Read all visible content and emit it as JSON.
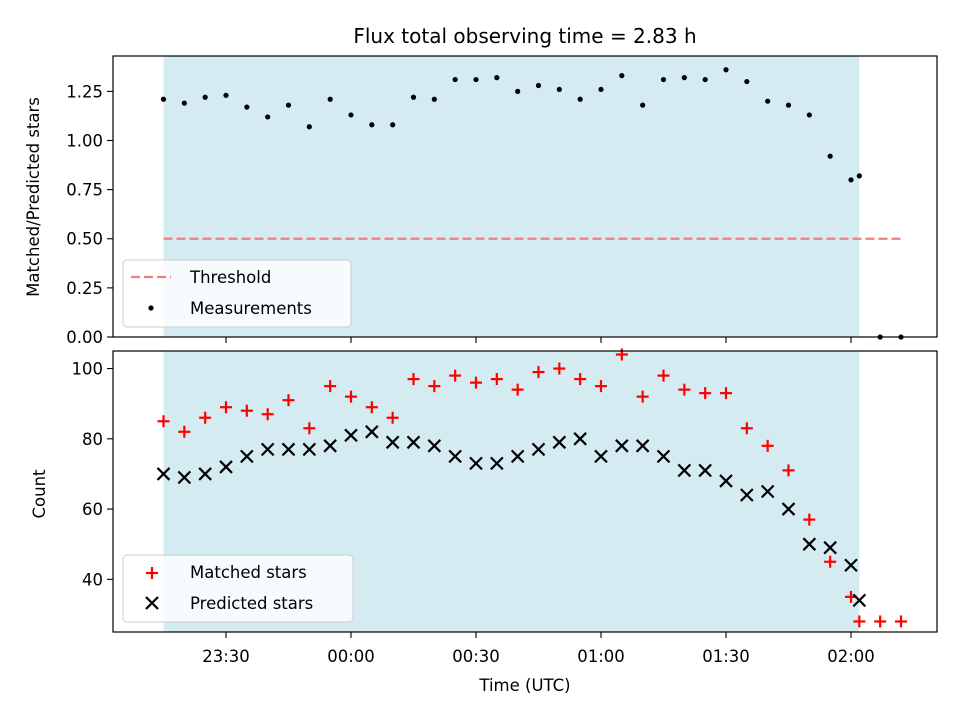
{
  "chart_data": [
    {
      "type": "scatter",
      "title": "Flux total observing time = 2.83 h",
      "ylabel": "Matched/Predicted stars",
      "xlabel": "",
      "ylim": [
        0,
        1.43
      ],
      "yticks": [
        "0.00",
        "0.25",
        "0.50",
        "0.75",
        "1.00",
        "1.25"
      ],
      "shaded_span": {
        "start": "23:15",
        "end": "02:02",
        "color": "#add8e6"
      },
      "threshold": {
        "name": "Threshold",
        "value": 0.5,
        "x_start": "23:15",
        "x_end": "02:12",
        "color": "#f08080"
      },
      "series": [
        {
          "name": "Measurements",
          "marker": "dot",
          "color": "#000000",
          "points": [
            [
              "23:15",
              1.21
            ],
            [
              "23:20",
              1.19
            ],
            [
              "23:25",
              1.22
            ],
            [
              "23:30",
              1.23
            ],
            [
              "23:35",
              1.17
            ],
            [
              "23:40",
              1.12
            ],
            [
              "23:45",
              1.18
            ],
            [
              "23:50",
              1.07
            ],
            [
              "23:55",
              1.21
            ],
            [
              "00:00",
              1.13
            ],
            [
              "00:05",
              1.08
            ],
            [
              "00:10",
              1.08
            ],
            [
              "00:15",
              1.22
            ],
            [
              "00:20",
              1.21
            ],
            [
              "00:25",
              1.31
            ],
            [
              "00:30",
              1.31
            ],
            [
              "00:35",
              1.32
            ],
            [
              "00:40",
              1.25
            ],
            [
              "00:45",
              1.28
            ],
            [
              "00:50",
              1.26
            ],
            [
              "00:55",
              1.21
            ],
            [
              "01:00",
              1.26
            ],
            [
              "01:05",
              1.33
            ],
            [
              "01:10",
              1.18
            ],
            [
              "01:15",
              1.31
            ],
            [
              "01:20",
              1.32
            ],
            [
              "01:25",
              1.31
            ],
            [
              "01:30",
              1.36
            ],
            [
              "01:35",
              1.3
            ],
            [
              "01:40",
              1.2
            ],
            [
              "01:45",
              1.18
            ],
            [
              "01:50",
              1.13
            ],
            [
              "01:55",
              0.92
            ],
            [
              "02:00",
              0.8
            ],
            [
              "02:02",
              0.82
            ],
            [
              "02:07",
              0.0
            ],
            [
              "02:12",
              0.0
            ]
          ]
        }
      ],
      "legend": {
        "placement": "lower-left",
        "entries": [
          "Threshold",
          "Measurements"
        ]
      }
    },
    {
      "type": "scatter",
      "title": "",
      "ylabel": "Count",
      "xlabel": "Time (UTC)",
      "ylim": [
        25,
        105
      ],
      "yticks": [
        "40",
        "60",
        "80",
        "100"
      ],
      "xticks": [
        "23:30",
        "00:00",
        "00:30",
        "01:00",
        "01:30",
        "02:00"
      ],
      "shaded_span": {
        "start": "23:15",
        "end": "02:02",
        "color": "#add8e6"
      },
      "series": [
        {
          "name": "Matched stars",
          "marker": "plus",
          "color": "#ff0000",
          "points": [
            [
              "23:15",
              85
            ],
            [
              "23:20",
              82
            ],
            [
              "23:25",
              86
            ],
            [
              "23:30",
              89
            ],
            [
              "23:35",
              88
            ],
            [
              "23:40",
              87
            ],
            [
              "23:45",
              91
            ],
            [
              "23:50",
              83
            ],
            [
              "23:55",
              95
            ],
            [
              "00:00",
              92
            ],
            [
              "00:05",
              89
            ],
            [
              "00:10",
              86
            ],
            [
              "00:15",
              97
            ],
            [
              "00:20",
              95
            ],
            [
              "00:25",
              98
            ],
            [
              "00:30",
              96
            ],
            [
              "00:35",
              97
            ],
            [
              "00:40",
              94
            ],
            [
              "00:45",
              99
            ],
            [
              "00:50",
              100
            ],
            [
              "00:55",
              97
            ],
            [
              "01:00",
              95
            ],
            [
              "01:05",
              104
            ],
            [
              "01:10",
              92
            ],
            [
              "01:15",
              98
            ],
            [
              "01:20",
              94
            ],
            [
              "01:25",
              93
            ],
            [
              "01:30",
              93
            ],
            [
              "01:35",
              83
            ],
            [
              "01:40",
              78
            ],
            [
              "01:45",
              71
            ],
            [
              "01:50",
              57
            ],
            [
              "01:55",
              45
            ],
            [
              "02:00",
              35
            ],
            [
              "02:02",
              28
            ],
            [
              "02:07",
              28
            ],
            [
              "02:12",
              28
            ]
          ]
        },
        {
          "name": "Predicted stars",
          "marker": "x",
          "color": "#000000",
          "points": [
            [
              "23:15",
              70
            ],
            [
              "23:20",
              69
            ],
            [
              "23:25",
              70
            ],
            [
              "23:30",
              72
            ],
            [
              "23:35",
              75
            ],
            [
              "23:40",
              77
            ],
            [
              "23:45",
              77
            ],
            [
              "23:50",
              77
            ],
            [
              "23:55",
              78
            ],
            [
              "00:00",
              81
            ],
            [
              "00:05",
              82
            ],
            [
              "00:10",
              79
            ],
            [
              "00:15",
              79
            ],
            [
              "00:20",
              78
            ],
            [
              "00:25",
              75
            ],
            [
              "00:30",
              73
            ],
            [
              "00:35",
              73
            ],
            [
              "00:40",
              75
            ],
            [
              "00:45",
              77
            ],
            [
              "00:50",
              79
            ],
            [
              "00:55",
              80
            ],
            [
              "01:00",
              75
            ],
            [
              "01:05",
              78
            ],
            [
              "01:10",
              78
            ],
            [
              "01:15",
              75
            ],
            [
              "01:20",
              71
            ],
            [
              "01:25",
              71
            ],
            [
              "01:30",
              68
            ],
            [
              "01:35",
              64
            ],
            [
              "01:40",
              65
            ],
            [
              "01:45",
              60
            ],
            [
              "01:50",
              50
            ],
            [
              "01:55",
              49
            ],
            [
              "02:00",
              44
            ],
            [
              "02:02",
              34
            ]
          ]
        }
      ],
      "legend": {
        "placement": "lower-left",
        "entries": [
          "Matched stars",
          "Predicted stars"
        ]
      }
    }
  ]
}
